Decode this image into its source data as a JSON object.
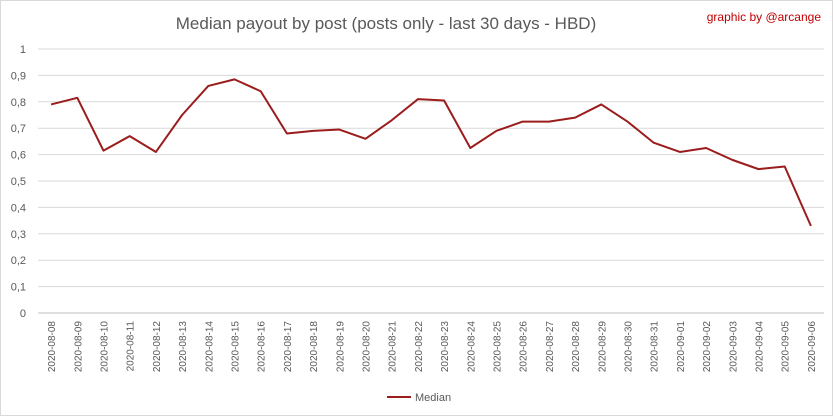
{
  "chart_data": {
    "type": "line",
    "title": "Median payout by post (posts only - last 30 days - HBD)",
    "credit": "graphic by @arcange",
    "xlabel": "",
    "ylabel": "",
    "ylim": [
      0,
      1
    ],
    "yticks": [
      "0",
      "0,1",
      "0,2",
      "0,3",
      "0,4",
      "0,5",
      "0,6",
      "0,7",
      "0,8",
      "0,9",
      "1"
    ],
    "grid": true,
    "legend_position": "bottom",
    "color": "#9b1c1c",
    "x": [
      "2020-08-08",
      "2020-08-09",
      "2020-08-10",
      "2020-08-11",
      "2020-08-12",
      "2020-08-13",
      "2020-08-14",
      "2020-08-15",
      "2020-08-16",
      "2020-08-17",
      "2020-08-18",
      "2020-08-19",
      "2020-08-20",
      "2020-08-21",
      "2020-08-22",
      "2020-08-23",
      "2020-08-24",
      "2020-08-25",
      "2020-08-26",
      "2020-08-27",
      "2020-08-28",
      "2020-08-29",
      "2020-08-30",
      "2020-08-31",
      "2020-09-01",
      "2020-09-02",
      "2020-09-03",
      "2020-09-04",
      "2020-09-05",
      "2020-09-06"
    ],
    "series": [
      {
        "name": "Median",
        "values": [
          0.79,
          0.815,
          0.615,
          0.67,
          0.61,
          0.75,
          0.86,
          0.885,
          0.84,
          0.68,
          0.69,
          0.695,
          0.66,
          0.73,
          0.81,
          0.805,
          0.625,
          0.69,
          0.725,
          0.725,
          0.74,
          0.79,
          0.725,
          0.645,
          0.61,
          0.625,
          0.58,
          0.545,
          0.555,
          0.33
        ]
      }
    ]
  }
}
